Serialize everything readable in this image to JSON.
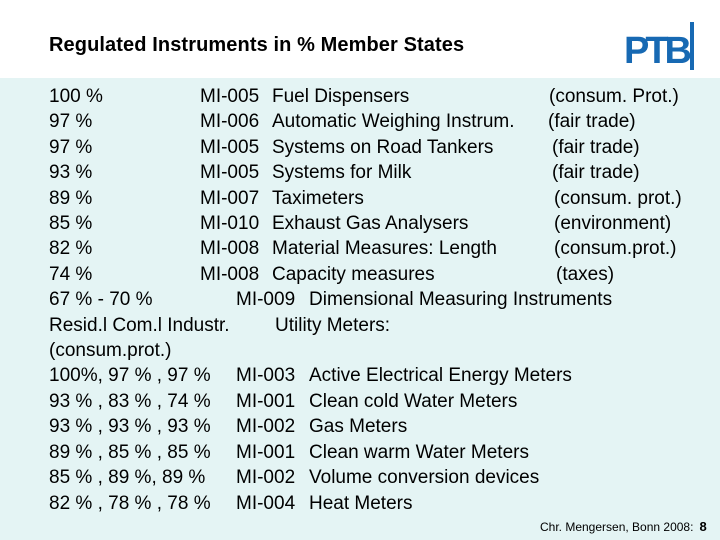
{
  "title": "Regulated Instruments in % Member States",
  "logo_text": "PTB",
  "rows1": [
    {
      "pct": "100 %",
      "code": "MI-005",
      "name": "Fuel Dispensers",
      "cat": "(consum. Prot.)"
    },
    {
      "pct": "97 %",
      "code": "MI-006",
      "name": "Automatic Weighing Instrum.",
      "cat": "(fair trade)"
    },
    {
      "pct": "97 %",
      "code": "MI-005",
      "name": "Systems on Road Tankers",
      "cat": "(fair trade)"
    },
    {
      "pct": "93 %",
      "code": "MI-005",
      "name": "Systems for Milk",
      "cat": "(fair trade)"
    },
    {
      "pct": "89 %",
      "code": "MI-007",
      "name": "Taximeters",
      "cat": "(consum. prot.)"
    },
    {
      "pct": "85 %",
      "code": "MI-010",
      "name": "Exhaust Gas Analysers",
      "cat": "(environment)"
    },
    {
      "pct": "82 %",
      "code": "MI-008",
      "name": "Material Measures: Length",
      "cat": "(consum.prot.)"
    },
    {
      "pct": "74 %",
      "code": "MI-008",
      "name": "Capacity measures",
      "cat": "(taxes)"
    }
  ],
  "row_dim": {
    "pct": "67 % - 70 %",
    "code": "MI-009",
    "name": "Dimensional Measuring Instruments"
  },
  "utility_header": {
    "left": "Resid.l Com.l Industr.",
    "right": "Utility Meters:"
  },
  "utility_sub": "(consum.prot.)",
  "rows2": [
    {
      "pct": "100%, 97 % , 97 %",
      "code": "MI-003",
      "name": "Active Electrical Energy Meters"
    },
    {
      "pct": "93 % , 83 % , 74 %",
      "code": "MI-001",
      "name": "Clean cold Water Meters"
    },
    {
      "pct": "93 % , 93 % , 93 %",
      "code": "MI-002",
      "name": "Gas Meters"
    },
    {
      "pct": "89 % , 85 % , 85 %",
      "code": "MI-001",
      "name": "Clean warm Water Meters"
    },
    {
      "pct": "85 % , 89 %,  89 %",
      "code": "MI-002",
      "name": "Volume conversion devices"
    },
    {
      "pct": "82 % , 78 % , 78 %",
      "code": "MI-004",
      "name": "Heat Meters"
    }
  ],
  "footer": {
    "author": "Chr. Mengersen, Bonn 2008:",
    "page": "8"
  }
}
